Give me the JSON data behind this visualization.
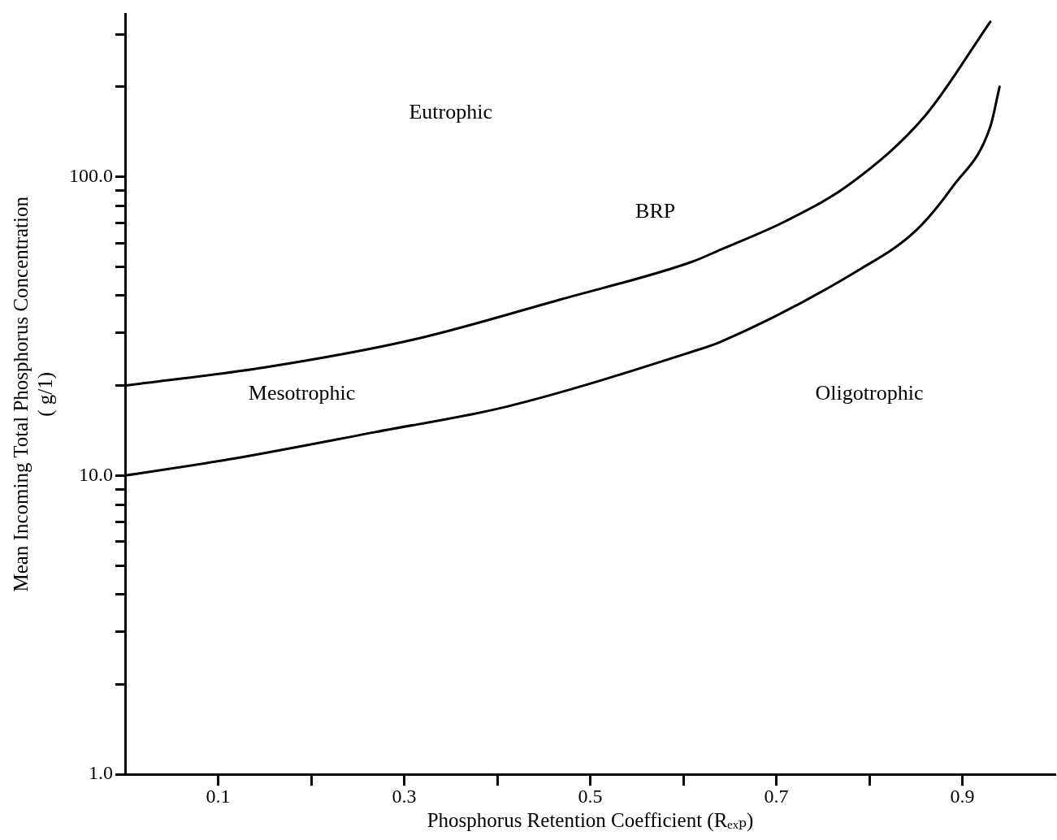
{
  "chart_data": {
    "type": "line",
    "xlabel": "Phosphorus Retention Coefficient (Rₑₓₚ)",
    "ylabel": "Mean Incoming Total Phosphorus Concentration\n( g/1)",
    "xlim": [
      0,
      1
    ],
    "xticks": [
      {
        "value": 0.1,
        "label": "0.1"
      },
      {
        "value": 0.2,
        "label": null
      },
      {
        "value": 0.3,
        "label": "0.3"
      },
      {
        "value": 0.4,
        "label": null
      },
      {
        "value": 0.5,
        "label": "0.5"
      },
      {
        "value": 0.6,
        "label": null
      },
      {
        "value": 0.7,
        "label": "0.7"
      },
      {
        "value": 0.8,
        "label": null
      },
      {
        "value": 0.9,
        "label": "0.9"
      }
    ],
    "ylim": [
      1,
      350
    ],
    "log": "y",
    "yticks": [
      {
        "value": 1,
        "label": "1.0"
      },
      {
        "value": 2,
        "label": null
      },
      {
        "value": 3,
        "label": null
      },
      {
        "value": 4,
        "label": null
      },
      {
        "value": 5,
        "label": null
      },
      {
        "value": 6,
        "label": null
      },
      {
        "value": 7,
        "label": null
      },
      {
        "value": 8,
        "label": null
      },
      {
        "value": 9,
        "label": null
      },
      {
        "value": 10,
        "label": "10.0"
      },
      {
        "value": 20,
        "label": null
      },
      {
        "value": 30,
        "label": null
      },
      {
        "value": 40,
        "label": null
      },
      {
        "value": 50,
        "label": null
      },
      {
        "value": 60,
        "label": null
      },
      {
        "value": 70,
        "label": null
      },
      {
        "value": 80,
        "label": null
      },
      {
        "value": 90,
        "label": null
      },
      {
        "value": 100,
        "label": "100.0"
      },
      {
        "value": 200,
        "label": null
      },
      {
        "value": 300,
        "label": null
      }
    ],
    "grid": false,
    "legend": false,
    "marker": "none",
    "line_style": "solid",
    "series": [
      {
        "color": "#000000",
        "x": [
          0,
          0.15,
          0.31,
          0.47,
          0.61,
          0.64,
          0.71,
          0.78,
          0.86,
          0.93
        ],
        "values": [
          20,
          23,
          28.5,
          39,
          52,
          57,
          71,
          95,
          160,
          330
        ]
      },
      {
        "color": "#000000",
        "x": [
          0,
          0.11,
          0.27,
          0.41,
          0.61,
          0.64,
          0.79,
          0.85,
          0.89,
          0.93,
          0.94
        ],
        "values": [
          10,
          11.3,
          14,
          17,
          26,
          28,
          49,
          66,
          93,
          147,
          200
        ]
      }
    ],
    "annotations": [
      "Eutrophic",
      "BRP",
      "Mesotrophic",
      "Oligotrophic"
    ]
  }
}
